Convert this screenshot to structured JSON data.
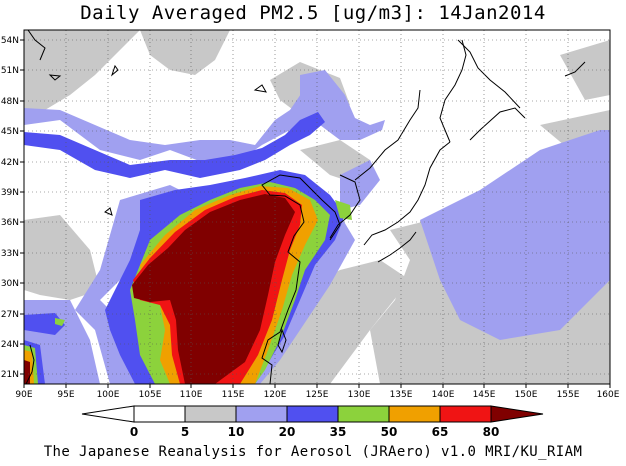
{
  "title": "Daily Averaged PM2.5 [ug/m3]: 14Jan2014",
  "footer": "The Japanese Reanalysis for Aerosol (JRAero) v1.0 MRI/KU_RIAM",
  "map": {
    "lon_range": [
      90,
      160
    ],
    "lat_range": [
      20,
      55
    ],
    "lon_ticks": [
      "90E",
      "95E",
      "100E",
      "105E",
      "110E",
      "115E",
      "120E",
      "125E",
      "130E",
      "135E",
      "140E",
      "145E",
      "150E",
      "155E",
      "160E"
    ],
    "lat_ticks": [
      "21N",
      "24N",
      "27N",
      "30N",
      "33N",
      "36N",
      "39N",
      "42N",
      "45N",
      "48N",
      "51N",
      "54N"
    ],
    "grid": "dotted"
  },
  "colorbar": {
    "levels": [
      "0",
      "5",
      "10",
      "20",
      "35",
      "50",
      "65",
      "80"
    ],
    "colors": [
      "#ffffff",
      "#c8c8c8",
      "#a0a0f0",
      "#5050f0",
      "#8cd23c",
      "#f0a000",
      "#f01414",
      "#800000"
    ]
  }
}
